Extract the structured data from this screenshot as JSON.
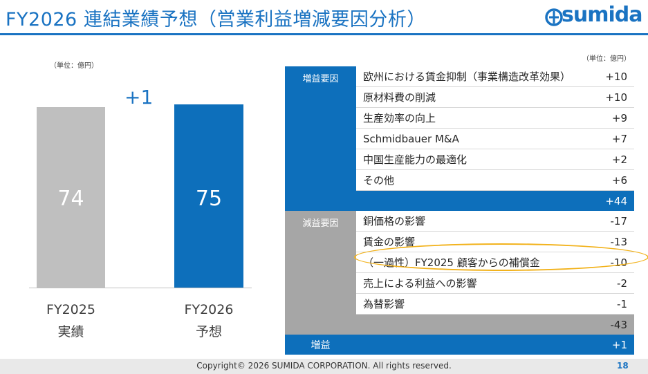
{
  "header": {
    "title": "FY2026 連結業績予想（営業利益増減要因分析）",
    "logo_text": "sumida"
  },
  "chart": {
    "unit_label": "（単位：億円）",
    "delta_label": "+1",
    "bars": [
      {
        "value_label": "74",
        "value": 74,
        "label_line1": "FY2025",
        "label_line2": "実績",
        "color": "#bfbfbf"
      },
      {
        "value_label": "75",
        "value": 75,
        "label_line1": "FY2026",
        "label_line2": "予想",
        "color": "#0d6fbb"
      }
    ]
  },
  "table": {
    "unit_label": "（単位：億円）",
    "increase": {
      "category": "増益要因",
      "items": [
        {
          "label": "欧州における賃金抑制（事業構造改革効果）",
          "value": "+10"
        },
        {
          "label": "原材料費の削減",
          "value": "+10"
        },
        {
          "label": "生産効率の向上",
          "value": "+9"
        },
        {
          "label": "Schmidbauer M&A",
          "value": "+7"
        },
        {
          "label": "中国生産能力の最適化",
          "value": "+2"
        },
        {
          "label": "その他",
          "value": "+6"
        }
      ],
      "subtotal": "+44"
    },
    "decrease": {
      "category": "減益要因",
      "items": [
        {
          "label": "銅価格の影響",
          "value": "-17"
        },
        {
          "label": "賃金の影響",
          "value": "-13"
        },
        {
          "label": "（一過性）FY2025 顧客からの補償金",
          "value": "-10"
        },
        {
          "label": "売上による利益への影響",
          "value": "-2"
        },
        {
          "label": "為替影響",
          "value": "-1"
        }
      ],
      "subtotal": "-43"
    },
    "total": {
      "label": "増益",
      "value": "+1"
    }
  },
  "colors": {
    "accent": "#1a73c2",
    "increase": "#0d6fbb",
    "decrease": "#a6a6a6",
    "highlight": "#f2b21b"
  },
  "footer": {
    "copyright": "Copyright© 2026 SUMIDA CORPORATION. All rights reserved.",
    "page_number": "18"
  }
}
